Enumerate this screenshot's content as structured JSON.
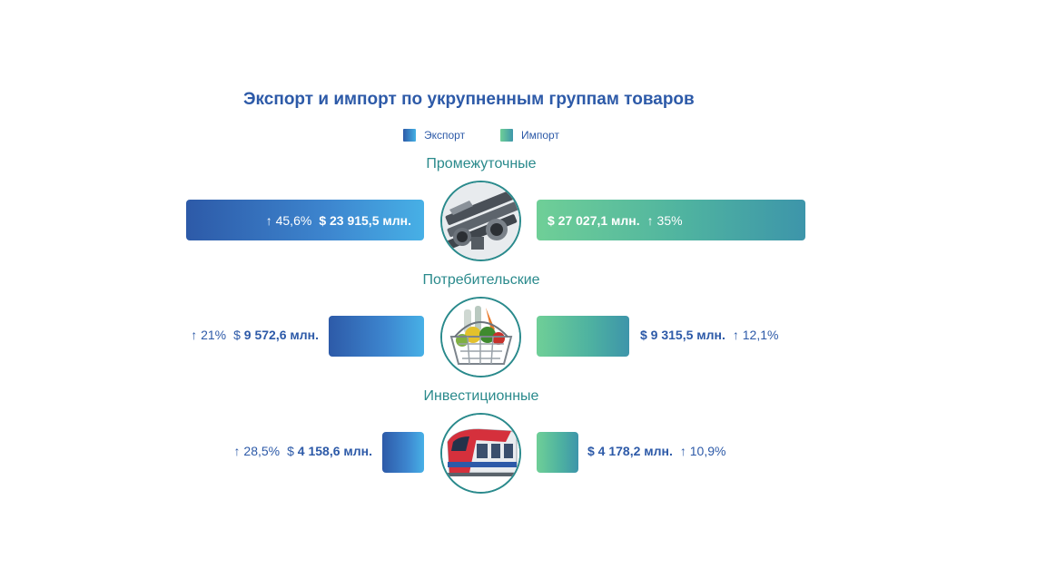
{
  "chart_data": {
    "type": "bar",
    "title": "Экспорт и импорт по укрупненным группам товаров",
    "legend": {
      "placement": "top-center",
      "export": "Экспорт",
      "import": "Импорт"
    },
    "categories": [
      "Промежуточные",
      "Потребительские",
      "Инвестиционные"
    ],
    "series": [
      {
        "name": "Экспорт",
        "values": [
          23915.5,
          9572.6,
          4158.6
        ],
        "value_labels": [
          "$ 23 915,5 млн.",
          "9 572,6 млн.",
          "4 158,6 млн."
        ],
        "growth": [
          "↑ 45,6%",
          "↑ 21%",
          "↑ 28,5%"
        ]
      },
      {
        "name": "Импорт",
        "values": [
          27027.1,
          9315.5,
          4178.2
        ],
        "value_labels": [
          "$ 27 027,1 млн.",
          "$ 9 315,5 млн.",
          "$ 4 178,2 млн."
        ],
        "growth": [
          "↑ 35%",
          "↑ 12,1%",
          "↑ 10,9%"
        ]
      }
    ],
    "dollar_sign": "$",
    "icons": [
      "steel-pipes-icon",
      "grocery-basket-icon",
      "train-icon"
    ],
    "colors": {
      "export_start": "#2d5aa8",
      "export_end": "#47b0e6",
      "import_start": "#6fcf97",
      "import_end": "#3d95aa",
      "title": "#2d5aa8",
      "category": "#2a8a8c"
    }
  }
}
